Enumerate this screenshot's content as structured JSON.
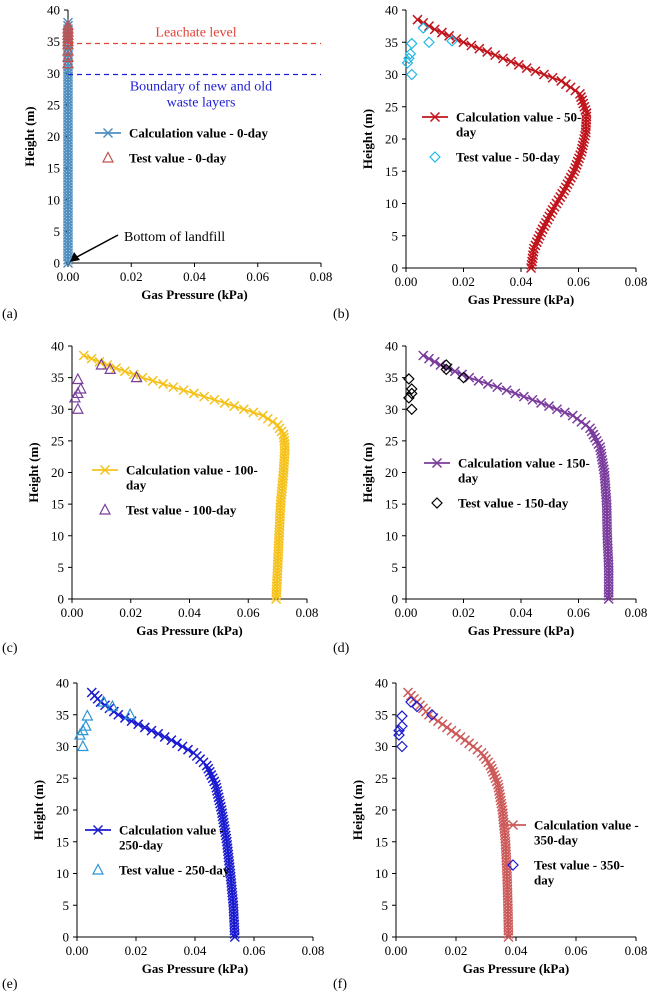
{
  "figure": {
    "colors": {
      "axis": "#000000",
      "leachate": "#e0453a",
      "boundary": "#1f1fd6"
    },
    "chart_data": [
      {
        "type": "line",
        "panel_label": "(a)",
        "day": 0,
        "xlabel": "Gas Pressure (kPa)",
        "ylabel": "Height (m)",
        "xlim": [
          0,
          0.08
        ],
        "ylim": [
          0,
          40
        ],
        "xticks": [
          0,
          0.02,
          0.04,
          0.06,
          0.08
        ],
        "xtick_labels": [
          "0.00",
          "0.02",
          "0.04",
          "0.06",
          "0.08"
        ],
        "yticks": [
          0,
          5,
          10,
          15,
          20,
          25,
          30,
          35,
          40
        ],
        "ytick_labels": [
          "0",
          "5",
          "10",
          "15",
          "20",
          "25",
          "30",
          "35",
          "40"
        ],
        "series": [
          {
            "name": "Calculation value - 0-day",
            "legend_lines": [
              "Calculation value - 0-day"
            ],
            "role": "calc",
            "color": "#4f8fc0",
            "marker": "x",
            "x_by_height": [
              [
                0,
                0
              ],
              [
                38,
                0
              ]
            ]
          },
          {
            "name": "Test value - 0-day",
            "legend_lines": [
              "Test value - 0-day"
            ],
            "role": "test",
            "color": "#c0504d",
            "marker": "triangle",
            "points": [
              [
                0,
                37.5
              ],
              [
                0,
                37
              ],
              [
                0,
                36.5
              ],
              [
                0,
                36
              ],
              [
                0,
                35.5
              ],
              [
                0,
                35
              ],
              [
                0,
                34.5
              ],
              [
                0,
                33.5
              ],
              [
                0,
                32.5
              ],
              [
                0,
                31.5
              ]
            ]
          }
        ],
        "annotations": {
          "leachate_level": {
            "text": "Leachate level",
            "y": 34.7
          },
          "boundary": {
            "lines": [
              "Boundary of new and old",
              "waste layers"
            ],
            "y": 29.8
          },
          "bottom": {
            "text": "Bottom of landfill",
            "x": 0,
            "y": 0
          }
        }
      },
      {
        "type": "line",
        "panel_label": "(b)",
        "day": 50,
        "xlabel": "Gas Pressure (kPa)",
        "ylabel": "Height (m)",
        "xlim": [
          0,
          0.08
        ],
        "ylim": [
          0,
          40
        ],
        "xticks": [
          0,
          0.02,
          0.04,
          0.06,
          0.08
        ],
        "xtick_labels": [
          "0.00",
          "0.02",
          "0.04",
          "0.06",
          "0.08"
        ],
        "yticks": [
          0,
          5,
          10,
          15,
          20,
          25,
          30,
          35,
          40
        ],
        "ytick_labels": [
          "0",
          "5",
          "10",
          "15",
          "20",
          "25",
          "30",
          "35",
          "40"
        ],
        "series": [
          {
            "name": "Calculation value - 50-day",
            "legend_lines": [
              "Calculation value - 50-",
              "day"
            ],
            "role": "calc",
            "color": "#c0141c",
            "marker": "x",
            "x_by_height": [
              [
                0,
                0.0435
              ],
              [
                3,
                0.0445
              ],
              [
                6,
                0.0475
              ],
              [
                9,
                0.051
              ],
              [
                12,
                0.055
              ],
              [
                15,
                0.0585
              ],
              [
                18,
                0.061
              ],
              [
                21,
                0.0625
              ],
              [
                24,
                0.0628
              ],
              [
                27,
                0.0605
              ],
              [
                29,
                0.054
              ],
              [
                31,
                0.042
              ],
              [
                33,
                0.031
              ],
              [
                35,
                0.02
              ],
              [
                37,
                0.01
              ],
              [
                38.5,
                0.004
              ]
            ]
          },
          {
            "name": "Test value - 50-day",
            "legend_lines": [
              "Test value - 50-day"
            ],
            "role": "test",
            "color": "#22b8e6",
            "marker": "diamond",
            "points": [
              [
                0.006,
                37.2
              ],
              [
                0.016,
                35.2
              ],
              [
                0.008,
                35.0
              ],
              [
                0.002,
                34.8
              ],
              [
                0.0015,
                33.2
              ],
              [
                0.001,
                32.5
              ],
              [
                0.0005,
                31.8
              ],
              [
                0.002,
                30.0
              ]
            ]
          }
        ]
      },
      {
        "type": "line",
        "panel_label": "(c)",
        "day": 100,
        "xlabel": "Gas Pressure (kPa)",
        "ylabel": "Height (m)",
        "xlim": [
          0,
          0.08
        ],
        "ylim": [
          0,
          40
        ],
        "xticks": [
          0,
          0.02,
          0.04,
          0.06,
          0.08
        ],
        "xtick_labels": [
          "0.00",
          "0.02",
          "0.04",
          "0.06",
          "0.08"
        ],
        "yticks": [
          0,
          5,
          10,
          15,
          20,
          25,
          30,
          35,
          40
        ],
        "ytick_labels": [
          "0",
          "5",
          "10",
          "15",
          "20",
          "25",
          "30",
          "35",
          "40"
        ],
        "series": [
          {
            "name": "Calculation value - 100-day",
            "legend_lines": [
              "Calculation value - 100-",
              "day"
            ],
            "role": "calc",
            "color": "#f5c21b",
            "marker": "x",
            "x_by_height": [
              [
                0,
                0.0695
              ],
              [
                5,
                0.07
              ],
              [
                10,
                0.0705
              ],
              [
                15,
                0.071
              ],
              [
                20,
                0.072
              ],
              [
                24,
                0.0725
              ],
              [
                26,
                0.072
              ],
              [
                27.5,
                0.07
              ],
              [
                29,
                0.065
              ],
              [
                31,
                0.052
              ],
              [
                33,
                0.038
              ],
              [
                35,
                0.024
              ],
              [
                37,
                0.012
              ],
              [
                38.5,
                0.004
              ]
            ]
          },
          {
            "name": "Test value - 100-day",
            "legend_lines": [
              "Test value - 100-day"
            ],
            "role": "test",
            "color": "#7a3f9d",
            "marker": "triangle",
            "points": [
              [
                0.01,
                37.0
              ],
              [
                0.013,
                36.3
              ],
              [
                0.022,
                35.0
              ],
              [
                0.002,
                34.7
              ],
              [
                0.003,
                33.2
              ],
              [
                0.002,
                32.5
              ],
              [
                0.001,
                31.8
              ],
              [
                0.002,
                30.0
              ]
            ]
          }
        ]
      },
      {
        "type": "line",
        "panel_label": "(d)",
        "day": 150,
        "xlabel": "Gas Pressure (kPa)",
        "ylabel": "Height (m)",
        "xlim": [
          0,
          0.08
        ],
        "ylim": [
          0,
          40
        ],
        "xticks": [
          0,
          0.02,
          0.04,
          0.06,
          0.08
        ],
        "xtick_labels": [
          "0.00",
          "0.02",
          "0.04",
          "0.06",
          "0.08"
        ],
        "yticks": [
          0,
          5,
          10,
          15,
          20,
          25,
          30,
          35,
          40
        ],
        "ytick_labels": [
          "0",
          "5",
          "10",
          "15",
          "20",
          "25",
          "30",
          "35",
          "40"
        ],
        "series": [
          {
            "name": "Calculation value - 150-day",
            "legend_lines": [
              "Calculation value - 150-",
              "day"
            ],
            "role": "calc",
            "color": "#7a3c9d",
            "marker": "x",
            "x_by_height": [
              [
                0,
                0.0705
              ],
              [
                5,
                0.0705
              ],
              [
                10,
                0.07
              ],
              [
                15,
                0.0698
              ],
              [
                20,
                0.069
              ],
              [
                24,
                0.0675
              ],
              [
                27,
                0.064
              ],
              [
                29,
                0.058
              ],
              [
                31,
                0.047
              ],
              [
                33,
                0.035
              ],
              [
                35,
                0.022
              ],
              [
                37,
                0.012
              ],
              [
                38.5,
                0.006
              ]
            ]
          },
          {
            "name": "Test value - 150-day",
            "legend_lines": [
              "Test value - 150-day"
            ],
            "role": "test",
            "color": "#000000",
            "marker": "diamond",
            "points": [
              [
                0.014,
                37.0
              ],
              [
                0.014,
                36.3
              ],
              [
                0.02,
                35.0
              ],
              [
                0.001,
                34.8
              ],
              [
                0.002,
                33.2
              ],
              [
                0.002,
                32.5
              ],
              [
                0.001,
                31.8
              ],
              [
                0.002,
                30.0
              ]
            ]
          }
        ]
      },
      {
        "type": "line",
        "panel_label": "(e)",
        "day": 250,
        "xlabel": "Gas Pressure (kPa)",
        "ylabel": "Height (m)",
        "xlim": [
          0,
          0.08
        ],
        "ylim": [
          0,
          40
        ],
        "xticks": [
          0,
          0.02,
          0.04,
          0.06,
          0.08
        ],
        "xtick_labels": [
          "0.00",
          "0.02",
          "0.04",
          "0.06",
          "0.08"
        ],
        "yticks": [
          0,
          5,
          10,
          15,
          20,
          25,
          30,
          35,
          40
        ],
        "ytick_labels": [
          "0",
          "5",
          "10",
          "15",
          "20",
          "25",
          "30",
          "35",
          "40"
        ],
        "series": [
          {
            "name": "Calculation value - 250-day",
            "legend_lines": [
              "Calculation value -",
              "250-day"
            ],
            "role": "calc",
            "color": "#1b1bd0",
            "marker": "x",
            "x_by_height": [
              [
                0,
                0.0535
              ],
              [
                5,
                0.053
              ],
              [
                10,
                0.052
              ],
              [
                15,
                0.0508
              ],
              [
                20,
                0.049
              ],
              [
                24,
                0.047
              ],
              [
                27,
                0.044
              ],
              [
                29,
                0.0395
              ],
              [
                31,
                0.032
              ],
              [
                33,
                0.023
              ],
              [
                35,
                0.014
              ],
              [
                37,
                0.008
              ],
              [
                38.5,
                0.005
              ]
            ]
          },
          {
            "name": "Test value - 250-day",
            "legend_lines": [
              "Test value - 250-day"
            ],
            "role": "test",
            "color": "#2b95d6",
            "marker": "triangle",
            "points": [
              [
                0.009,
                37.0
              ],
              [
                0.012,
                36.3
              ],
              [
                0.018,
                35.0
              ],
              [
                0.0035,
                34.8
              ],
              [
                0.003,
                33.2
              ],
              [
                0.002,
                32.5
              ],
              [
                0.001,
                31.8
              ],
              [
                0.002,
                30.0
              ]
            ]
          }
        ]
      },
      {
        "type": "line",
        "panel_label": "(f)",
        "day": 350,
        "xlabel": "Gas Pressure (kPa)",
        "ylabel": "Height (m)",
        "xlim": [
          0,
          0.08
        ],
        "ylim": [
          0,
          40
        ],
        "xticks": [
          0,
          0.02,
          0.04,
          0.06,
          0.08
        ],
        "xtick_labels": [
          "0.00",
          "0.02",
          "0.04",
          "0.06",
          "0.08"
        ],
        "yticks": [
          0,
          5,
          10,
          15,
          20,
          25,
          30,
          35,
          40
        ],
        "ytick_labels": [
          "0",
          "5",
          "10",
          "15",
          "20",
          "25",
          "30",
          "35",
          "40"
        ],
        "series": [
          {
            "name": "Calculation value - 350-day",
            "legend_lines": [
              "Calculation value -",
              "350-day"
            ],
            "role": "calc",
            "color": "#cd5a5a",
            "marker": "x",
            "x_by_height": [
              [
                0,
                0.0375
              ],
              [
                5,
                0.0373
              ],
              [
                10,
                0.037
              ],
              [
                15,
                0.0365
              ],
              [
                20,
                0.0355
              ],
              [
                24,
                0.034
              ],
              [
                27,
                0.0315
              ],
              [
                29,
                0.0285
              ],
              [
                31,
                0.023
              ],
              [
                33,
                0.017
              ],
              [
                35,
                0.011
              ],
              [
                37,
                0.007
              ],
              [
                38.5,
                0.004
              ]
            ]
          },
          {
            "name": "Test value - 350-day",
            "legend_lines": [
              "Test value - 350-",
              "day"
            ],
            "role": "test",
            "color": "#1b1bd0",
            "marker": "diamond",
            "points": [
              [
                0.005,
                37.0
              ],
              [
                0.007,
                36.3
              ],
              [
                0.012,
                35.0
              ],
              [
                0.002,
                34.8
              ],
              [
                0.002,
                33.2
              ],
              [
                0.001,
                32.5
              ],
              [
                0.001,
                31.8
              ],
              [
                0.002,
                30.0
              ]
            ]
          }
        ]
      }
    ]
  }
}
